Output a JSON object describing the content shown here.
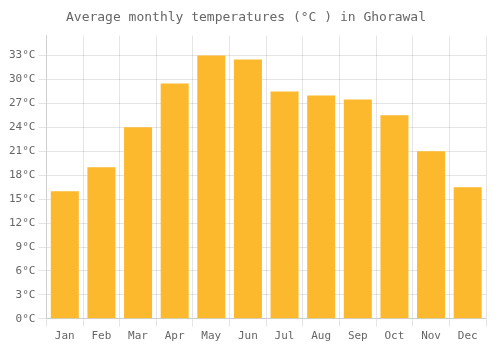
{
  "chart_data": {
    "type": "bar",
    "title": "Average monthly temperatures (°C ) in Ghorawal",
    "categories": [
      "Jan",
      "Feb",
      "Mar",
      "Apr",
      "May",
      "Jun",
      "Jul",
      "Aug",
      "Sep",
      "Oct",
      "Nov",
      "Dec"
    ],
    "values": [
      16,
      19,
      24,
      29.5,
      33,
      32.5,
      28.5,
      28,
      27.5,
      25.5,
      21,
      16.5
    ],
    "color": "#FDB92E",
    "ylim": [
      0,
      35.5
    ],
    "yticks": [
      {
        "value": 0,
        "label": "0°C"
      },
      {
        "value": 3,
        "label": "3°C"
      },
      {
        "value": 6,
        "label": "6°C"
      },
      {
        "value": 9,
        "label": "9°C"
      },
      {
        "value": 12,
        "label": "12°C"
      },
      {
        "value": 15,
        "label": "15°C"
      },
      {
        "value": 18,
        "label": "18°C"
      },
      {
        "value": 21,
        "label": "21°C"
      },
      {
        "value": 24,
        "label": "24°C"
      },
      {
        "value": 27,
        "label": "27°C"
      },
      {
        "value": 30,
        "label": "30°C"
      },
      {
        "value": 33,
        "label": "33°C"
      }
    ],
    "grid": true
  }
}
